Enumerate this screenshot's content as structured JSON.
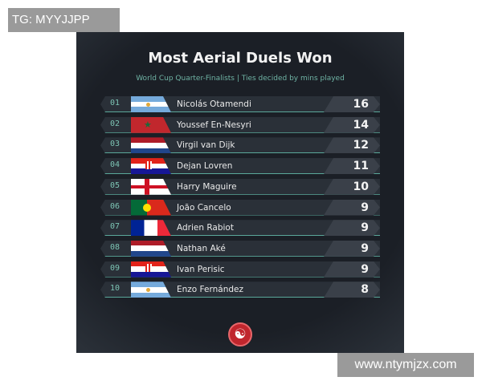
{
  "watermarks": {
    "top_left": "TG: MYYJJPP",
    "bottom_right": "www.ntymjzx.com"
  },
  "title": "Most Aerial Duels Won",
  "subtitle": "World Cup Quarter-Finalists | Ties decided by mins played",
  "rows": [
    {
      "rank": "01",
      "name": "Nicolás Otamendi",
      "score": "16",
      "flag": "argentina"
    },
    {
      "rank": "02",
      "name": "Youssef En-Nesyri",
      "score": "14",
      "flag": "morocco"
    },
    {
      "rank": "03",
      "name": "Virgil van Dijk",
      "score": "12",
      "flag": "netherlands"
    },
    {
      "rank": "04",
      "name": "Dejan Lovren",
      "score": "11",
      "flag": "croatia"
    },
    {
      "rank": "05",
      "name": "Harry Maguire",
      "score": "10",
      "flag": "england"
    },
    {
      "rank": "06",
      "name": "João Cancelo",
      "score": "9",
      "flag": "portugal"
    },
    {
      "rank": "07",
      "name": "Adrien Rabiot",
      "score": "9",
      "flag": "france"
    },
    {
      "rank": "08",
      "name": "Nathan Aké",
      "score": "9",
      "flag": "netherlands"
    },
    {
      "rank": "09",
      "name": "Ivan Perisic",
      "score": "9",
      "flag": "croatia"
    },
    {
      "rank": "10",
      "name": "Enzo Fernández",
      "score": "8",
      "flag": "argentina"
    }
  ],
  "colors": {
    "accent": "#6fb3a4",
    "background": "#1b1f26",
    "logo": "#c0262d"
  },
  "logo_icon": "brand-logo-icon"
}
